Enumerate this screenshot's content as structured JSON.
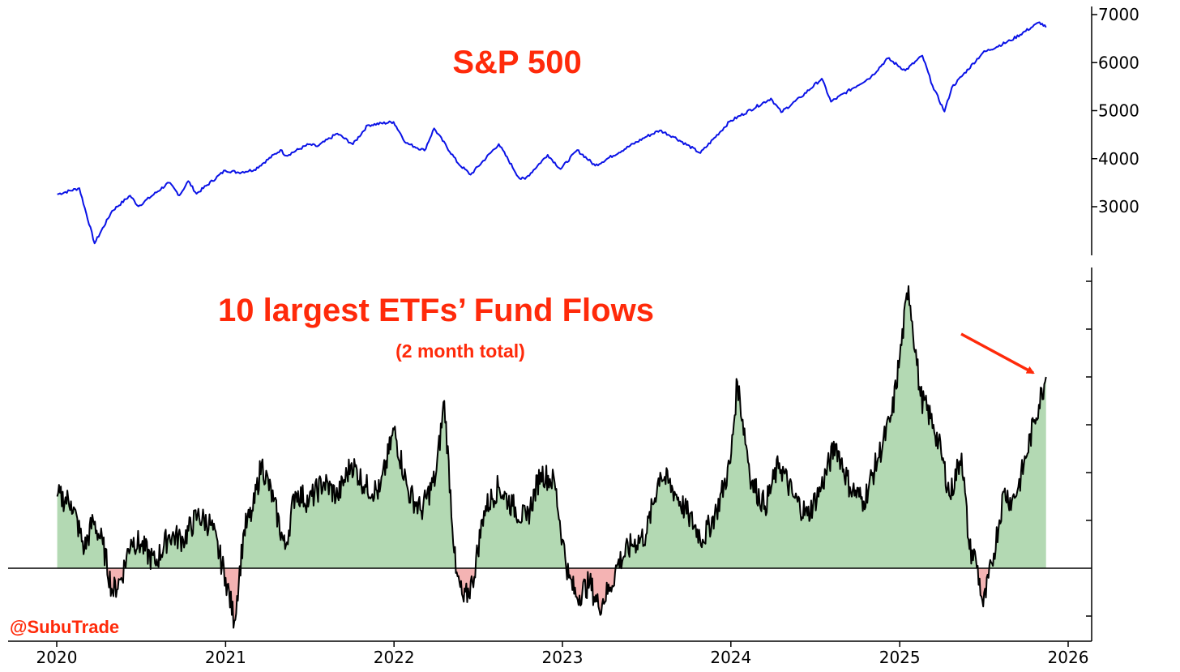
{
  "watermark": "@SubuTrade",
  "colors": {
    "title": "#ff2a0a",
    "sp_line": "#0a12e6",
    "flow_line": "#000000",
    "fill_positive": "#b3d9b3",
    "fill_negative": "#f4b3b3",
    "arrow": "#ff2a0a"
  },
  "chart_data": [
    {
      "type": "line",
      "title": "S&P 500",
      "x_axis_labels": [
        "2020",
        "2021",
        "2022",
        "2023",
        "2024",
        "2025",
        "2026"
      ],
      "xlim": [
        "2020-01-01",
        "2026-01-01"
      ],
      "y_tick_labels": [
        "3000",
        "4000",
        "5000",
        "6000",
        "7000"
      ],
      "y_ticks": [
        3000,
        4000,
        5000,
        6000,
        7000
      ],
      "ylim": [
        2050,
        7100
      ],
      "y_axis_side": "right",
      "series": [
        {
          "x": [
            "2020-01-02",
            "2020-02-19",
            "2020-03-23",
            "2020-04-30",
            "2020-06-08",
            "2020-06-26",
            "2020-08-31",
            "2020-09-23",
            "2020-10-12",
            "2020-10-30",
            "2020-12-31",
            "2021-01-29",
            "2021-03-04",
            "2021-04-30",
            "2021-05-12",
            "2021-06-30",
            "2021-07-19",
            "2021-08-31",
            "2021-10-04",
            "2021-11-05",
            "2021-12-31",
            "2022-01-27",
            "2022-03-08",
            "2022-03-29",
            "2022-05-20",
            "2022-06-16",
            "2022-08-16",
            "2022-09-30",
            "2022-10-12",
            "2022-11-30",
            "2022-12-28",
            "2023-02-02",
            "2023-03-13",
            "2023-06-30",
            "2023-07-31",
            "2023-08-31",
            "2023-10-27",
            "2023-12-29",
            "2024-03-28",
            "2024-04-19",
            "2024-05-31",
            "2024-07-16",
            "2024-08-05",
            "2024-10-31",
            "2024-12-06",
            "2025-01-13",
            "2025-02-19",
            "2025-03-13",
            "2025-04-08",
            "2025-04-24",
            "2025-06-30",
            "2025-08-29",
            "2025-10-31",
            "2025-11-14"
          ],
          "y": [
            3258,
            3386,
            2237,
            2912,
            3232,
            3009,
            3500,
            3237,
            3534,
            3270,
            3756,
            3714,
            3768,
            4181,
            4063,
            4297,
            4258,
            4523,
            4300,
            4697,
            4766,
            4326,
            4170,
            4631,
            3901,
            3667,
            4305,
            3586,
            3577,
            4080,
            3783,
            4179,
            3855,
            4450,
            4589,
            4450,
            4117,
            4770,
            5254,
            4967,
            5277,
            5667,
            5186,
            5705,
            6090,
            5836,
            6144,
            5521,
            4982,
            5485,
            6205,
            6460,
            6840,
            6734
          ]
        }
      ]
    },
    {
      "type": "area",
      "title": "10 largest ETFs’ Fund Flows",
      "subtitle": "(2 month total)",
      "x_axis_labels": [
        "2020",
        "2021",
        "2022",
        "2023",
        "2024",
        "2025",
        "2026"
      ],
      "xlim": [
        "2020-01-01",
        "2026-01-01"
      ],
      "ylim": [
        -1.5,
        6
      ],
      "y_ticks": [
        -1,
        1,
        2,
        3,
        4,
        5,
        6
      ],
      "y_tick_labels": [],
      "baseline": 0,
      "y_axis_side": "right",
      "series": [
        {
          "x": [
            "2020-01-02",
            "2020-02-01",
            "2020-03-01",
            "2020-03-20",
            "2020-04-10",
            "2020-05-01",
            "2020-05-20",
            "2020-06-10",
            "2020-07-01",
            "2020-08-01",
            "2020-09-01",
            "2020-10-01",
            "2020-11-01",
            "2020-12-01",
            "2021-01-01",
            "2021-01-20",
            "2021-02-10",
            "2021-03-01",
            "2021-03-20",
            "2021-04-15",
            "2021-05-10",
            "2021-06-01",
            "2021-07-01",
            "2021-08-01",
            "2021-09-01",
            "2021-10-01",
            "2021-11-01",
            "2021-12-01",
            "2022-01-01",
            "2022-02-01",
            "2022-03-01",
            "2022-04-01",
            "2022-04-20",
            "2022-05-15",
            "2022-06-01",
            "2022-06-20",
            "2022-07-15",
            "2022-08-15",
            "2022-09-15",
            "2022-10-15",
            "2022-11-15",
            "2022-12-15",
            "2023-01-01",
            "2023-01-15",
            "2023-02-01",
            "2023-03-01",
            "2023-03-20",
            "2023-04-15",
            "2023-05-01",
            "2023-06-01",
            "2023-07-01",
            "2023-08-01",
            "2023-09-01",
            "2023-10-01",
            "2023-11-01",
            "2023-12-01",
            "2023-12-31",
            "2024-01-15",
            "2024-02-15",
            "2024-03-15",
            "2024-04-15",
            "2024-05-15",
            "2024-06-15",
            "2024-07-15",
            "2024-08-15",
            "2024-09-15",
            "2024-10-15",
            "2024-11-15",
            "2024-12-15",
            "2025-01-01",
            "2025-01-20",
            "2025-02-15",
            "2025-03-15",
            "2025-04-01",
            "2025-04-20",
            "2025-05-15",
            "2025-06-01",
            "2025-06-15",
            "2025-07-01",
            "2025-07-20",
            "2025-08-15",
            "2025-09-01",
            "2025-09-15",
            "2025-10-01",
            "2025-10-20",
            "2025-11-14"
          ],
          "y": [
            1.5,
            1.4,
            0.4,
            1.0,
            0.5,
            -0.5,
            -0.2,
            0.6,
            0.5,
            0.1,
            0.7,
            0.6,
            1.1,
            0.9,
            -0.2,
            -1.1,
            0.8,
            1.2,
            2.2,
            1.4,
            0.4,
            1.6,
            1.4,
            1.8,
            1.5,
            2.2,
            1.7,
            1.6,
            2.9,
            1.6,
            1.2,
            1.9,
            3.5,
            -0.1,
            -0.7,
            -0.3,
            1.2,
            1.7,
            1.3,
            1.0,
            2.0,
            1.8,
            0.6,
            -0.2,
            -0.6,
            -0.3,
            -0.8,
            -0.4,
            0.1,
            0.5,
            0.7,
            2.0,
            1.6,
            1.1,
            0.6,
            1.2,
            2.2,
            3.9,
            1.8,
            1.3,
            2.2,
            1.5,
            1.1,
            1.7,
            2.6,
            1.7,
            1.4,
            2.3,
            3.2,
            4.4,
            5.9,
            3.6,
            3.0,
            2.4,
            1.5,
            2.4,
            0.4,
            0.2,
            -0.8,
            0.1,
            1.6,
            1.4,
            1.7,
            2.3,
            3.1,
            4.0
          ]
        }
      ]
    }
  ]
}
